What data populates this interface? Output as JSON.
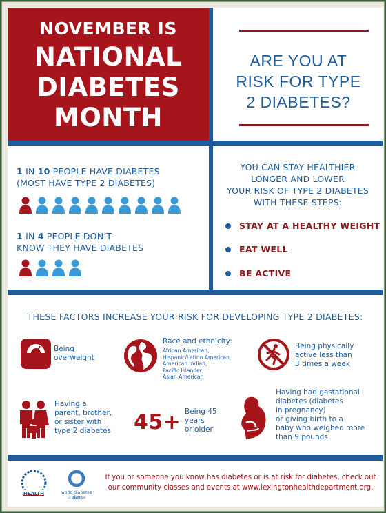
{
  "header": {
    "title_line1": "NOVEMBER IS",
    "title_line2": "NATIONAL",
    "title_line3": "DIABETES",
    "title_line4": "MONTH",
    "question_line1": "ARE YOU AT",
    "question_line2": "RISK FOR TYPE",
    "question_line3": "2 DIABETES?"
  },
  "stats": {
    "stat1_bold1": "1",
    "stat1_mid": " IN ",
    "stat1_bold2": "10",
    "stat1_rest": " PEOPLE HAVE DIABETES",
    "stat1_line2": "(MOST HAVE TYPE 2 DIABETES)",
    "stat1_people_total": 10,
    "stat1_people_highlighted": 1,
    "stat2_bold1": "1",
    "stat2_mid": " IN ",
    "stat2_bold2": "4",
    "stat2_rest": " PEOPLE DON’T",
    "stat2_line2": "KNOW THEY HAVE DIABETES",
    "stat2_people_total": 4,
    "stat2_people_highlighted": 1
  },
  "steps": {
    "intro_line1": "YOU CAN STAY HEALTHIER",
    "intro_line2": "LONGER AND LOWER",
    "intro_line3": "YOUR RISK OF TYPE 2 DIABETES",
    "intro_line4": "WITH THESE STEPS:",
    "items": [
      {
        "label": "STAY AT A HEALTHY WEIGHT"
      },
      {
        "label": "EAT WELL"
      },
      {
        "label": "BE ACTIVE"
      }
    ]
  },
  "factors": {
    "heading": "THESE FACTORS INCREASE YOUR RISK FOR DEVELOPING TYPE 2 DIABETES:",
    "overweight_l1": "Being",
    "overweight_l2": "overweight",
    "race_title": "Race and ethnicity:",
    "race_list": [
      "African American,",
      "Hispanic/Latino American,",
      "American Indian,",
      "Pacific Islander,",
      "Asian American"
    ],
    "inactive_l1": "Being physically",
    "inactive_l2": "active less than",
    "inactive_l3": "3 times a week",
    "family_l1": "Having a",
    "family_l2": "parent, brother,",
    "family_l3": "or sister with",
    "family_l4": "type 2 diabetes",
    "age_big": "45+",
    "age_l1": "Being 45",
    "age_l2": "years",
    "age_l3": "or older",
    "gest_l1": "Having had gestational",
    "gest_l2": "diabetes (diabetes",
    "gest_l3": "in pregnancy)",
    "gest_l4": "or giving birth to a",
    "gest_l5": "baby who weighed more",
    "gest_l6": "than 9 pounds"
  },
  "footer": {
    "line1": "If you or someone you know has diabetes or is at risk for diabetes, check out",
    "line2": "our community classes and events at www.lexingtonhealthdepartment.org.",
    "logo1_text": "HEALTH",
    "logo2_line1": "world diabetes day",
    "logo2_line2": "14 November"
  },
  "colors": {
    "red": "#a5151b",
    "blue": "#1f5c9b",
    "light_blue": "#3a9ad9"
  }
}
